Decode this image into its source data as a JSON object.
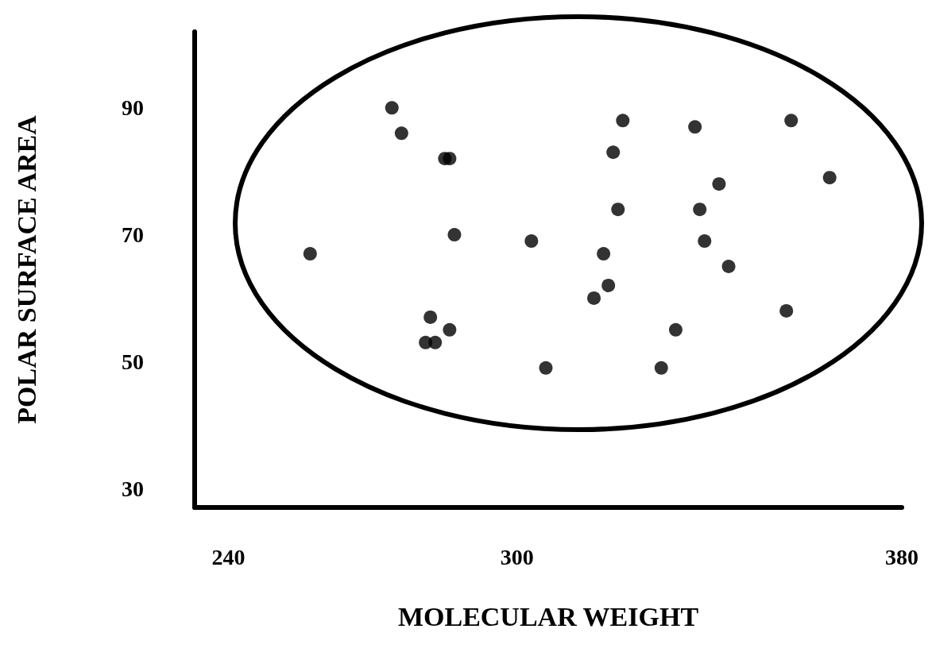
{
  "chart_data": {
    "type": "scatter",
    "xlabel": "MOLECULAR WEIGHT",
    "ylabel": "POLAR SURFACE AREA",
    "x": [
      274,
      276,
      285,
      286,
      257,
      287,
      303,
      282,
      286,
      281,
      283,
      306,
      322,
      320,
      321,
      318,
      319,
      316,
      337,
      342,
      338,
      339,
      344,
      357,
      365,
      356,
      333,
      330
    ],
    "values": [
      90,
      86,
      82,
      82,
      67,
      70,
      69,
      57,
      55,
      53,
      53,
      49,
      88,
      83,
      74,
      67,
      62,
      60,
      87,
      78,
      74,
      69,
      65,
      88,
      79,
      58,
      55,
      49
    ],
    "color": "#000000",
    "marker": "circle",
    "xlim": [
      233,
      380
    ],
    "ylim": [
      27,
      102
    ],
    "xticks": [
      240,
      300,
      380
    ],
    "yticks": [
      30,
      50,
      70,
      90
    ],
    "grid": false
  }
}
